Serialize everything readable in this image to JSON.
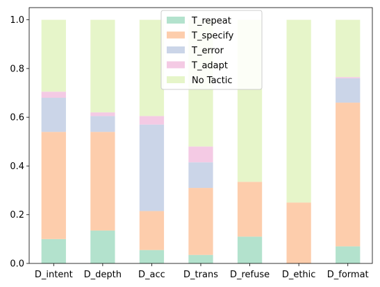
{
  "chart_data": {
    "type": "bar",
    "stacked": true,
    "categories": [
      "D_intent",
      "D_depth",
      "D_acc",
      "D_trans",
      "D_refuse",
      "D_ethic",
      "D_format"
    ],
    "series": [
      {
        "name": "T_repeat",
        "color": "#b3e2cd",
        "values": [
          0.1,
          0.135,
          0.055,
          0.035,
          0.11,
          0.0,
          0.07
        ]
      },
      {
        "name": "T_specify",
        "color": "#fdcdac",
        "values": [
          0.44,
          0.405,
          0.16,
          0.275,
          0.225,
          0.25,
          0.59
        ]
      },
      {
        "name": "T_error",
        "color": "#cbd5e8",
        "values": [
          0.14,
          0.065,
          0.355,
          0.105,
          0.0,
          0.0,
          0.1
        ]
      },
      {
        "name": "T_adapt",
        "color": "#f4cae4",
        "values": [
          0.025,
          0.015,
          0.035,
          0.065,
          0.0,
          0.0,
          0.005
        ]
      },
      {
        "name": "No Tactic",
        "color": "#e6f5c9",
        "values": [
          0.295,
          0.38,
          0.395,
          0.52,
          0.665,
          0.75,
          0.235
        ]
      }
    ],
    "yticks": [
      "0.0",
      "0.2",
      "0.4",
      "0.6",
      "0.8",
      "1.0"
    ],
    "ylim": [
      0,
      1.05
    ],
    "grid": false,
    "legend_position": "top-center"
  }
}
